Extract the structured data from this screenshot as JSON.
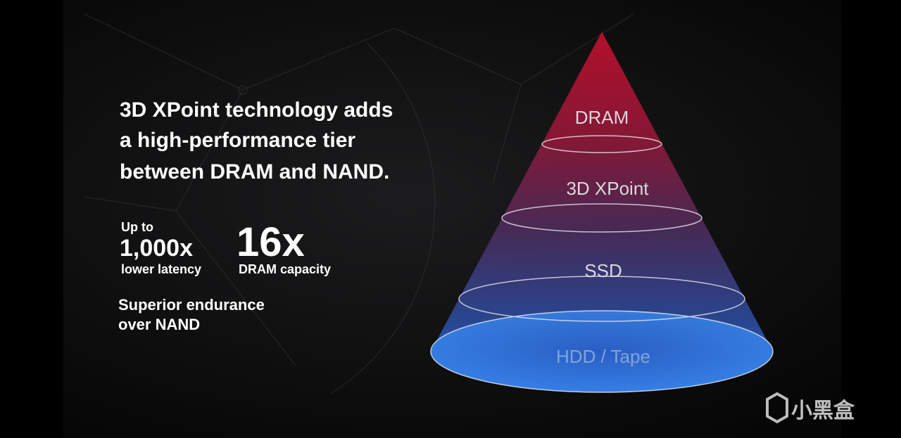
{
  "headline": {
    "lines": [
      "3D XPoint technology adds",
      "a high-performance tier",
      "between DRAM and NAND."
    ]
  },
  "stats": [
    {
      "prefix": "Up to",
      "value": "1,000x",
      "caption": "lower latency"
    },
    {
      "value": "16x",
      "caption": "DRAM capacity"
    }
  ],
  "endurance": {
    "lines": [
      "Superior endurance",
      "over NAND"
    ]
  },
  "pyramid": {
    "tiers": [
      "DRAM",
      "3D XPoint",
      "SSD",
      "HDD / Tape"
    ]
  },
  "watermark": "小黑盒"
}
